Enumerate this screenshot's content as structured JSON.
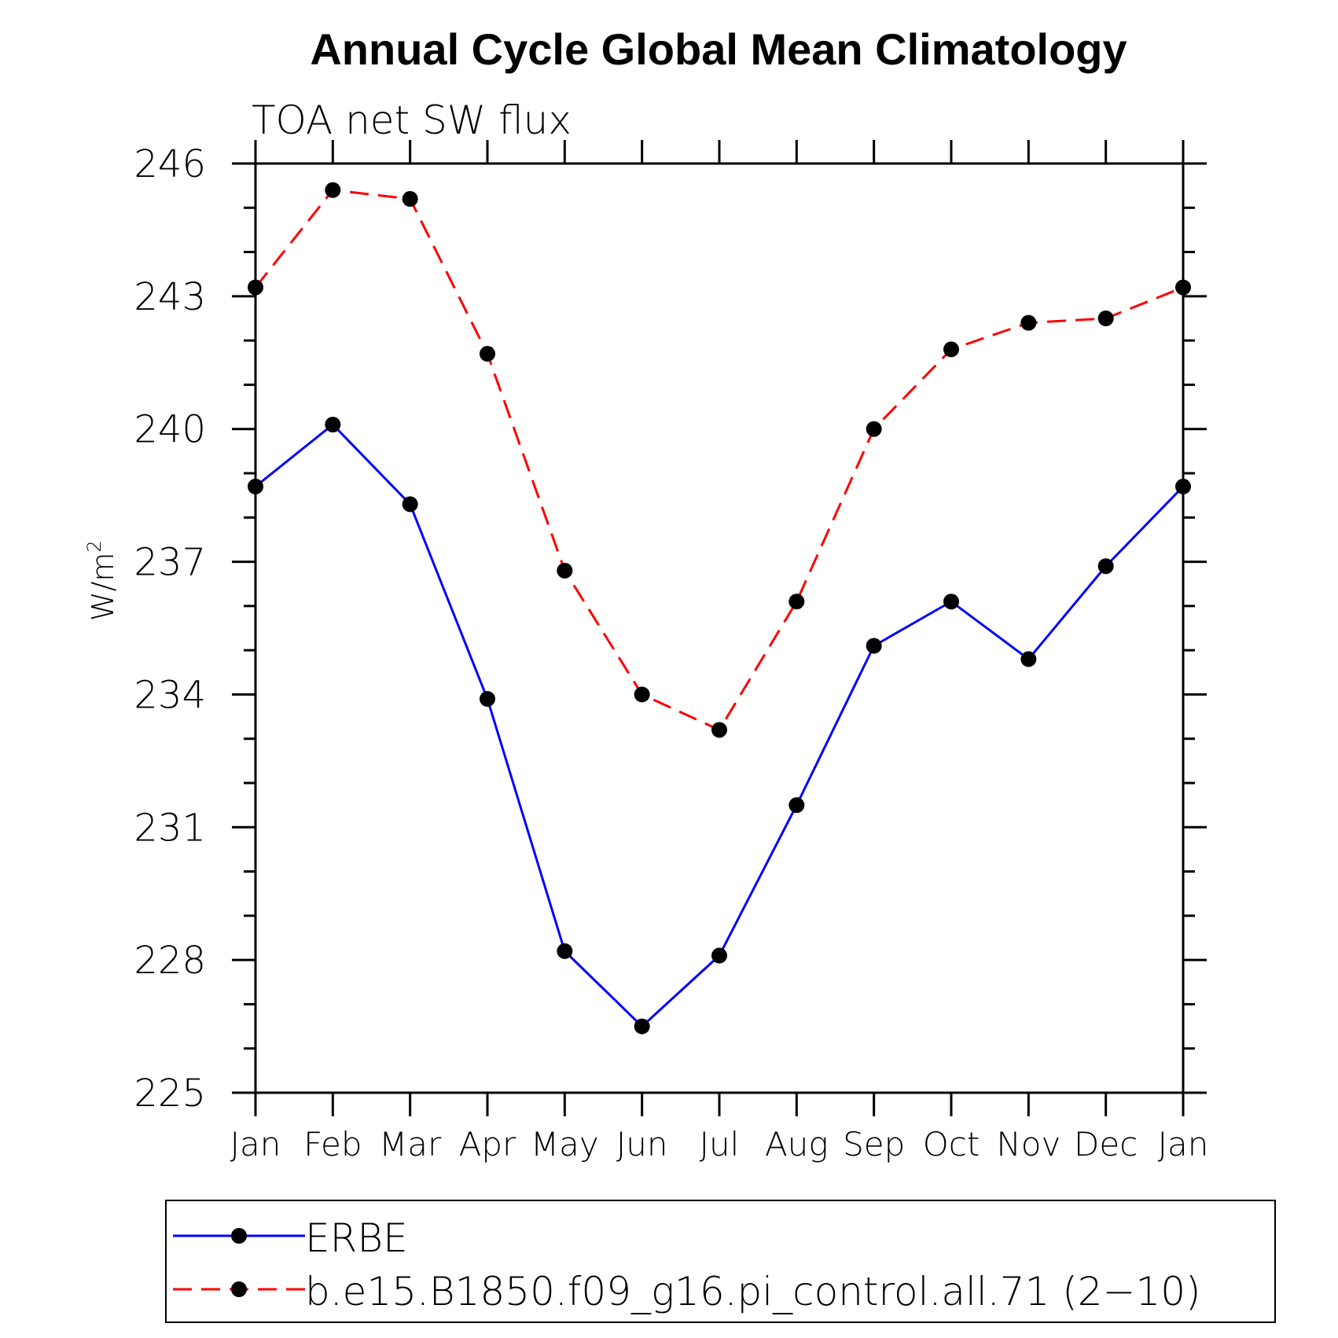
{
  "chart_data": {
    "type": "line",
    "title": "Annual Cycle Global Mean Climatology",
    "subtitle": "TOA net SW flux",
    "ylabel": "W/m",
    "ylabel_superscript": "2",
    "ylim": [
      225,
      246
    ],
    "yticks": [
      "246",
      "243",
      "240",
      "237",
      "234",
      "231",
      "228",
      "225"
    ],
    "categories": [
      "Jan",
      "Feb",
      "Mar",
      "Apr",
      "May",
      "Jun",
      "Jul",
      "Aug",
      "Sep",
      "Oct",
      "Nov",
      "Dec",
      "Jan"
    ],
    "grid": false,
    "legend_position": "bottom",
    "series": [
      {
        "name": "ERBE",
        "color": "#0000ff",
        "line_style": "solid",
        "marker": "filled-circle",
        "values": [
          238.7,
          240.1,
          238.3,
          233.9,
          228.2,
          226.5,
          228.1,
          231.5,
          235.1,
          236.1,
          234.8,
          236.9,
          238.7
        ]
      },
      {
        "name": "b.e15.B1850.f09_g16.pi_control.all.71 (2−10)",
        "color": "#ff0000",
        "line_style": "dashed",
        "marker": "filled-circle",
        "values": [
          243.2,
          245.4,
          245.2,
          241.7,
          236.8,
          234.0,
          233.2,
          236.1,
          240.0,
          241.8,
          242.4,
          242.5,
          243.2
        ]
      }
    ]
  }
}
